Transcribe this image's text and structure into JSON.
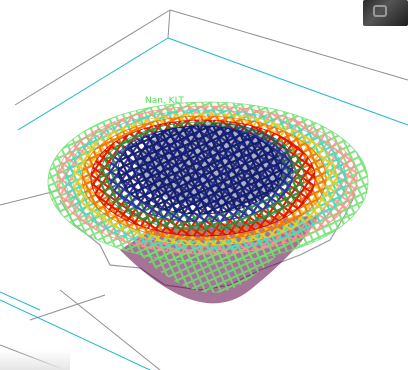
{
  "viewport": {
    "axis_label": "Nan. KLT"
  },
  "icons": {
    "thumbnail": "view-thumbnail-icon"
  },
  "colors": {
    "box_edge": "#909090",
    "box_inner": "#22b8c8",
    "outline": "#9a9a9a",
    "band_palette": [
      "#5a0040",
      "#7b1020",
      "#2030c0",
      "#0d1b6b",
      "#1a9a4a",
      "#40e0c0",
      "#f0d020",
      "#ff6a00",
      "#e00000",
      "#ff9090",
      "#70e070"
    ]
  }
}
